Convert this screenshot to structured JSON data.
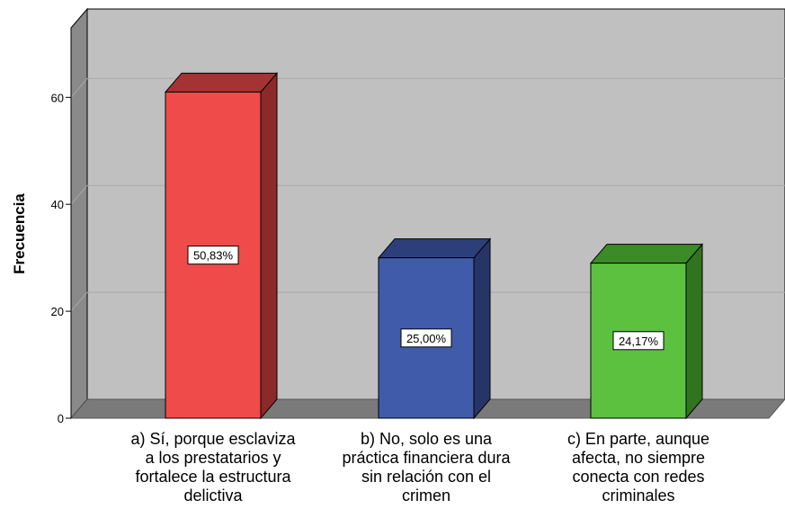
{
  "chart_data": {
    "type": "bar",
    "ylabel": "Frecuencia",
    "ylim": [
      0,
      73
    ],
    "yticks": [
      "0",
      "20",
      "40",
      "60"
    ],
    "grid": true,
    "categories": [
      [
        "a) Sí, porque esclaviza",
        "a los prestatarios y",
        "fortalece la estructura",
        "delictiva"
      ],
      [
        "b) No, solo es una",
        "práctica financiera dura",
        "sin relación con el",
        "crimen"
      ],
      [
        "c) En parte, aunque",
        "afecta, no siempre",
        "conecta con redes",
        "criminales"
      ]
    ],
    "values": [
      61,
      30,
      29
    ],
    "percent_labels": [
      "50,83%",
      "25,00%",
      "24,17%"
    ],
    "colors": {
      "front": [
        "#ef4b4b",
        "#3f5baa",
        "#5cc13e"
      ],
      "side": [
        "#8c2a2a",
        "#263566",
        "#327320"
      ],
      "top": [
        "#a63333",
        "#2d3f7a",
        "#3d8a28"
      ],
      "wall_back": "#c0c0c0",
      "wall_side": "#8a8a8a",
      "floor": "#7a7a7a"
    }
  }
}
